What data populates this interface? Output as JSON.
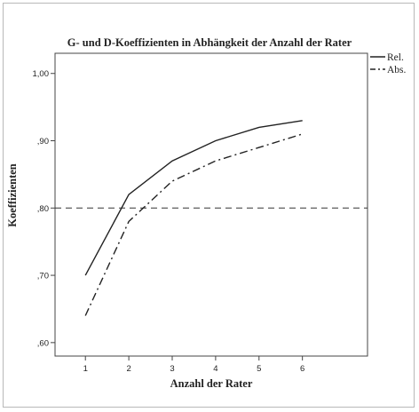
{
  "chart_data": {
    "type": "line",
    "title": "G- und D-Koeffizienten in Abhängkeit der Anzahl der Rater",
    "xlabel": "Anzahl der Rater",
    "ylabel": "Koeffizienten",
    "x": [
      1,
      2,
      3,
      4,
      5,
      6
    ],
    "x_tick_labels": [
      "1",
      "2",
      "3",
      "4",
      "5",
      "6"
    ],
    "y_tick_values": [
      0.6,
      0.7,
      0.8,
      0.9,
      1.0
    ],
    "y_tick_labels": [
      ",60",
      ",70",
      ",80",
      ",90",
      "1,00"
    ],
    "xlim": [
      0.3,
      7.5
    ],
    "ylim": [
      0.58,
      1.03
    ],
    "series": [
      {
        "name": "Rel.",
        "values": [
          0.7,
          0.82,
          0.87,
          0.9,
          0.92,
          0.93
        ],
        "style": "solid"
      },
      {
        "name": "Abs.",
        "values": [
          0.64,
          0.78,
          0.84,
          0.87,
          0.89,
          0.91
        ],
        "style": "dashdot"
      }
    ],
    "reference_line": {
      "y": 0.8,
      "style": "dashed"
    },
    "grid": false,
    "legend_position": "right"
  }
}
